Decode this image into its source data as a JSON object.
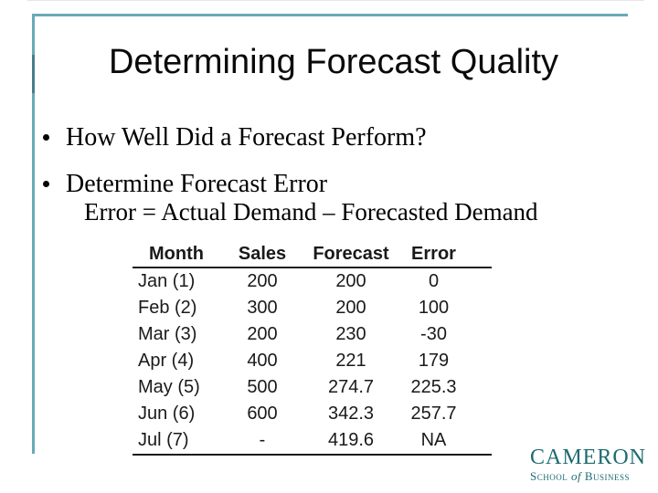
{
  "slide": {
    "title": "Determining Forecast Quality",
    "bullets": [
      "How Well Did a Forecast Perform?",
      "Determine Forecast Error"
    ],
    "formula": "Error = Actual Demand – Forecasted Demand",
    "table": {
      "headers": [
        "Month",
        "Sales",
        "Forecast",
        "Error"
      ],
      "rows": [
        [
          "Jan (1)",
          "200",
          "200",
          "0"
        ],
        [
          "Feb (2)",
          "300",
          "200",
          "100"
        ],
        [
          "Mar (3)",
          "200",
          "230",
          "-30"
        ],
        [
          "Apr (4)",
          "400",
          "221",
          "179"
        ],
        [
          "May (5)",
          "500",
          "274.7",
          "225.3"
        ],
        [
          "Jun (6)",
          "600",
          "342.3",
          "257.7"
        ],
        [
          "Jul (7)",
          "-",
          "419.6",
          "NA"
        ]
      ]
    },
    "logo": {
      "name": "CAMERON",
      "tagline_school": "School",
      "tagline_of": "of",
      "tagline_business": "Business"
    },
    "colors": {
      "frame_teal": "#6aa9b8",
      "logo_teal": "#1e6b70"
    }
  }
}
